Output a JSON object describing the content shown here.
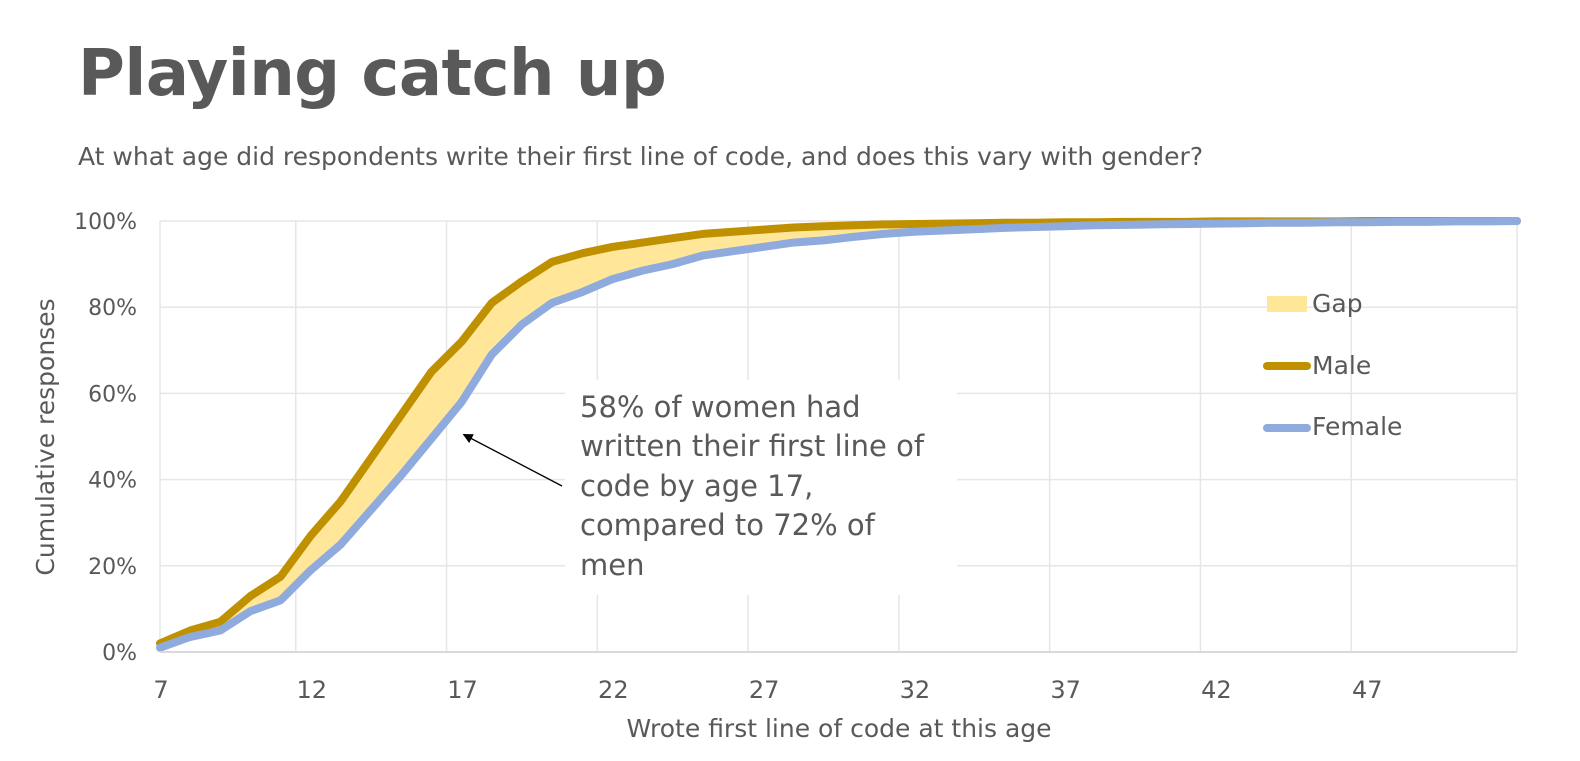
{
  "chart_data": {
    "type": "line",
    "title": "Playing catch up",
    "subtitle": "At what age did respondents write their first line of code, and does this vary with gender?",
    "xlabel": "Wrote first line of code at this age",
    "ylabel": "Cumulative responses",
    "xlim": [
      7,
      52
    ],
    "ylim": [
      0,
      1
    ],
    "x_ticks": [
      7,
      12,
      17,
      22,
      27,
      32,
      37,
      42,
      47
    ],
    "x_tick_labels": [
      "7",
      "12",
      "17",
      "22",
      "27",
      "32",
      "37",
      "42",
      "47"
    ],
    "y_ticks": [
      0,
      0.2,
      0.4,
      0.6,
      0.8,
      1.0
    ],
    "y_tick_labels": [
      "0%",
      "20%",
      "40%",
      "60%",
      "80%",
      "100%"
    ],
    "grid": true,
    "legend_position": "right",
    "x": [
      7,
      8,
      9,
      10,
      11,
      12,
      13,
      14,
      15,
      16,
      17,
      18,
      19,
      20,
      21,
      22,
      23,
      24,
      25,
      26,
      27,
      28,
      29,
      30,
      31,
      32,
      33,
      34,
      35,
      36,
      37,
      38,
      39,
      40,
      41,
      42,
      43,
      44,
      45,
      46,
      47,
      48,
      49,
      50,
      51,
      52
    ],
    "series": [
      {
        "name": "Male",
        "color": "#BF9000",
        "values": [
          0.02,
          0.05,
          0.07,
          0.13,
          0.175,
          0.27,
          0.35,
          0.45,
          0.55,
          0.65,
          0.72,
          0.81,
          0.86,
          0.905,
          0.925,
          0.94,
          0.95,
          0.96,
          0.97,
          0.975,
          0.98,
          0.985,
          0.988,
          0.99,
          0.992,
          0.993,
          0.994,
          0.995,
          0.996,
          0.996,
          0.997,
          0.997,
          0.998,
          0.998,
          0.998,
          0.999,
          0.999,
          0.999,
          0.999,
          0.999,
          1.0,
          1.0,
          1.0,
          1.0,
          1.0,
          1.0
        ]
      },
      {
        "name": "Female",
        "color": "#8FAADC",
        "values": [
          0.01,
          0.035,
          0.05,
          0.095,
          0.12,
          0.19,
          0.25,
          0.33,
          0.41,
          0.495,
          0.58,
          0.69,
          0.76,
          0.81,
          0.835,
          0.865,
          0.885,
          0.9,
          0.92,
          0.93,
          0.94,
          0.95,
          0.955,
          0.963,
          0.97,
          0.975,
          0.978,
          0.981,
          0.984,
          0.986,
          0.988,
          0.99,
          0.991,
          0.992,
          0.993,
          0.994,
          0.995,
          0.996,
          0.996,
          0.997,
          0.997,
          0.998,
          0.998,
          0.999,
          0.999,
          1.0
        ]
      }
    ],
    "gap": {
      "name": "Gap",
      "color": "#FFE699"
    },
    "annotation": {
      "lines": [
        "58% of women had",
        "written their first line of",
        "code by age 17,",
        "compared to 72% of",
        "men"
      ],
      "arrow_target_x": 17,
      "arrow_target_y": 0.5
    }
  }
}
